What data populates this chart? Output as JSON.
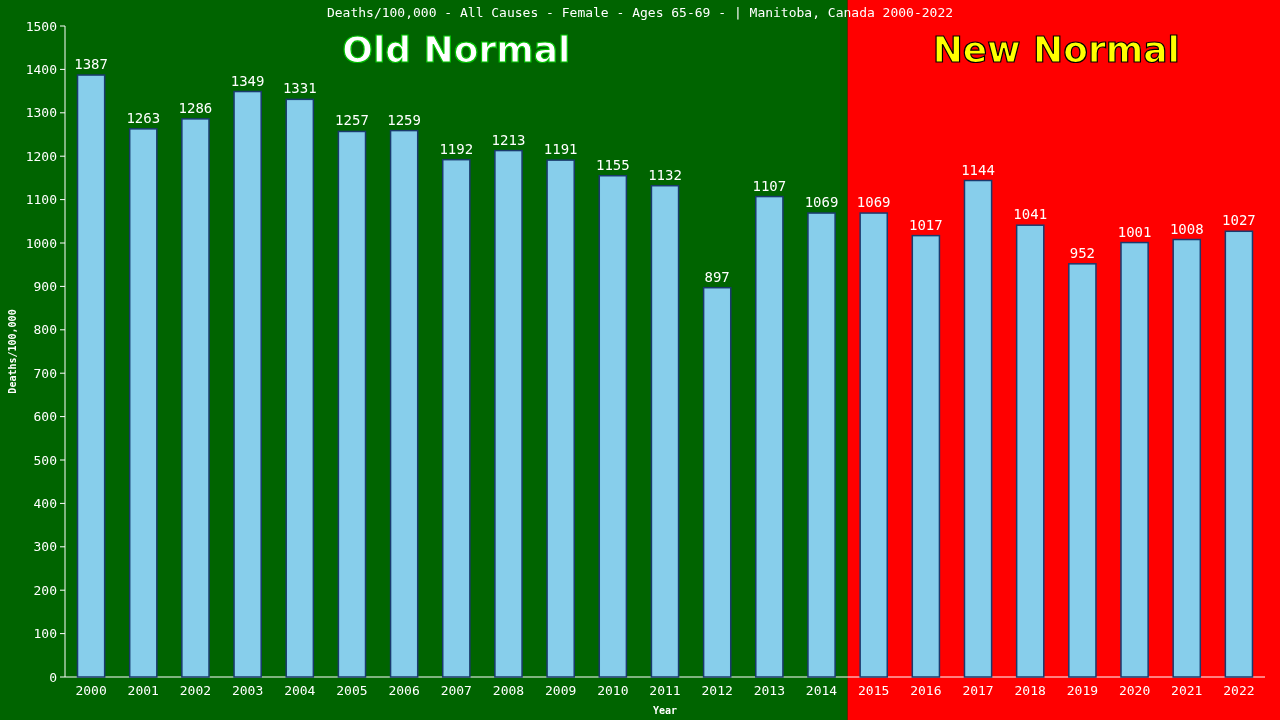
{
  "chart_data": {
    "type": "bar",
    "title": "Deaths/100,000 - All Causes - Female - Ages 65-69 -  | Manitoba, Canada 2000-2022",
    "xlabel": "Year",
    "ylabel": "Deaths/100,000",
    "categories": [
      "2000",
      "2001",
      "2002",
      "2003",
      "2004",
      "2005",
      "2006",
      "2007",
      "2008",
      "2009",
      "2010",
      "2011",
      "2012",
      "2013",
      "2014",
      "2015",
      "2016",
      "2017",
      "2018",
      "2019",
      "2020",
      "2021",
      "2022"
    ],
    "values": [
      1387,
      1263,
      1286,
      1349,
      1331,
      1257,
      1259,
      1192,
      1213,
      1191,
      1155,
      1132,
      897,
      1107,
      1069,
      1069,
      1017,
      1144,
      1041,
      952,
      1001,
      1008,
      1027
    ],
    "color": "#87ceeb",
    "data_labels": true,
    "ylim": [
      0,
      1500
    ],
    "yticks": [
      0,
      100,
      200,
      300,
      400,
      500,
      600,
      700,
      800,
      900,
      1000,
      1100,
      1200,
      1300,
      1400,
      1500
    ],
    "grid": false,
    "bands": [
      {
        "axis": "x",
        "from": "2000",
        "to": "2014",
        "label": "Old Normal",
        "color": "#006400"
      },
      {
        "axis": "x",
        "from": "2015",
        "to": "2022",
        "label": "New Normal",
        "color": "#ff0000"
      }
    ]
  }
}
